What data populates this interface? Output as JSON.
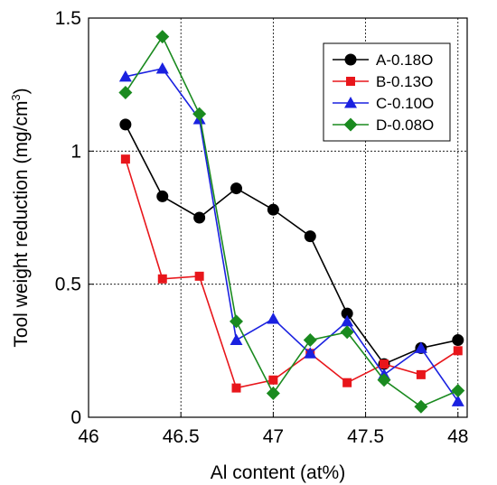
{
  "chart_data": {
    "type": "line",
    "xlabel": "Al content (at%)",
    "ylabel": "Tool weight reduction (mg/cm",
    "ylabel_sup": "3",
    "ylabel_end": ")",
    "xlim": [
      46,
      48.05
    ],
    "ylim": [
      0,
      1.5
    ],
    "x_ticks": [
      46,
      46.5,
      47,
      47.5,
      48
    ],
    "x_tick_labels": [
      "46",
      "46.5",
      "47",
      "47.5",
      "48"
    ],
    "y_ticks": [
      0,
      0.5,
      1,
      1.5
    ],
    "y_tick_labels": [
      "0",
      "0.5",
      "1",
      "1.5"
    ],
    "grid": true,
    "legend_position": "top-right",
    "x": [
      46.2,
      46.4,
      46.6,
      46.8,
      47.0,
      47.2,
      47.4,
      47.6,
      47.8,
      48.0
    ],
    "series": [
      {
        "name": "A-0.18O",
        "color": "#000000",
        "marker": "circle",
        "values": [
          1.1,
          0.83,
          0.75,
          0.86,
          0.78,
          0.68,
          0.39,
          0.2,
          0.26,
          0.29
        ]
      },
      {
        "name": "B-0.13O",
        "color": "#e8161b",
        "marker": "square",
        "values": [
          0.97,
          0.52,
          0.53,
          0.11,
          0.14,
          0.24,
          0.13,
          0.2,
          0.16,
          0.25
        ]
      },
      {
        "name": "C-0.10O",
        "color": "#1a21e0",
        "marker": "triangle",
        "values": [
          1.28,
          1.31,
          1.12,
          0.29,
          0.37,
          0.24,
          0.36,
          0.16,
          0.26,
          0.06
        ]
      },
      {
        "name": "D-0.08O",
        "color": "#1a8a1f",
        "marker": "diamond",
        "values": [
          1.22,
          1.43,
          1.14,
          0.36,
          0.09,
          0.29,
          0.32,
          0.14,
          0.04,
          0.1
        ]
      }
    ]
  }
}
